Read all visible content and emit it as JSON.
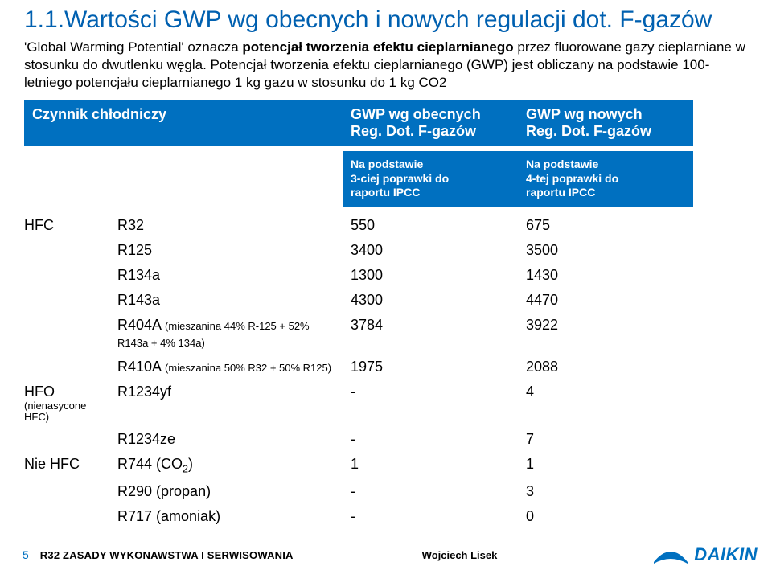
{
  "title": "1.1.Wartości GWP wg obecnych i nowych regulacji dot. F-gazów",
  "intro": {
    "part1_prefix": "'",
    "part1_quoted": "Global Warming Potential",
    "part1_rest": "' oznacza ",
    "part1_bold": "potencjał",
    "part2": " tworzenia efektu cieplarnianego",
    "part3": " przez fluorowane  gazy cieplarniane w stosunku do dwutlenku węgla. Potencjał tworzenia efektu cieplarnianego (GWP) jest obliczany na podstawie 100-letniego potencjału cieplarnianego 1 kg gazu w stosunku do 1 kg CO2"
  },
  "header": {
    "col0": "Czynnik chłodniczy",
    "col1_line1": "GWP wg obecnych",
    "col1_line2": "Reg. Dot. F-gazów",
    "col2_line1": "GWP wg nowych",
    "col2_line2": "Reg. Dot. F-gazów",
    "sub1_line1": "Na podstawie",
    "sub1_line2": "3-ciej poprawki do",
    "sub1_line3": "raportu IPCC",
    "sub2_line1": "Na podstawie",
    "sub2_line2": "4-tej poprawki do",
    "sub2_line3": "raportu IPCC"
  },
  "rows": [
    {
      "cat": "HFC",
      "catsub": "",
      "name": "R32",
      "v1": "550",
      "v2": "675"
    },
    {
      "cat": "",
      "catsub": "",
      "name": "R125",
      "v1": "3400",
      "v2": "3500"
    },
    {
      "cat": "",
      "catsub": "",
      "name": "R134a",
      "v1": "1300",
      "v2": "1430"
    },
    {
      "cat": "",
      "catsub": "",
      "name": "R143a",
      "v1": "4300",
      "v2": "4470"
    },
    {
      "cat": "",
      "catsub": "",
      "name": "R404A ",
      "mix": "(mieszanina 44% R-125 + 52% R143a + 4% 134a)",
      "v1": "3784",
      "v2": "3922"
    },
    {
      "cat": "",
      "catsub": "",
      "name": "R410A ",
      "mix": "(mieszanina 50% R32 + 50% R125)",
      "v1": "1975",
      "v2": "2088"
    },
    {
      "cat": "HFO",
      "catsub": "(nienasycone HFC)",
      "name": "R1234yf",
      "v1": "-",
      "v2": "4"
    },
    {
      "cat": "",
      "catsub": "",
      "name": "R1234ze",
      "v1": "-",
      "v2": "7"
    },
    {
      "cat": "Nie HFC",
      "catsub": "",
      "name_html": "R744  (CO<sub>2</sub>)",
      "v1": "1",
      "v2": "1"
    },
    {
      "cat": "",
      "catsub": "",
      "name": "R290 (propan)",
      "v1": "-",
      "v2": "3"
    },
    {
      "cat": "",
      "catsub": "",
      "name": "R717 (amoniak)",
      "v1": "-",
      "v2": "0"
    }
  ],
  "footer": {
    "pageno": "5",
    "doc": "R32 ZASADY WYKONAWSTWA I SERWISOWANIA",
    "author": "Wojciech Lisek",
    "logo_word": "DAIKIN",
    "logo_color": "#0070c0"
  },
  "colors": {
    "title": "#0060b0",
    "header_bg": "#0070c0",
    "header_fg": "#ffffff",
    "text": "#000000"
  }
}
